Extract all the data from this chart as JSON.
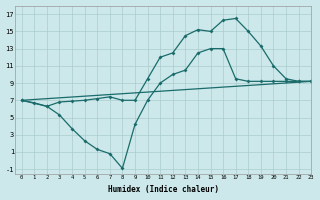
{
  "xlabel": "Humidex (Indice chaleur)",
  "background_color": "#cce8ea",
  "grid_color": "#aacccc",
  "line_color": "#1a6b6b",
  "line1_x": [
    0,
    1,
    2,
    3,
    4,
    5,
    6,
    7,
    8,
    9,
    10,
    11,
    12,
    13,
    14,
    15,
    16,
    17,
    18,
    19,
    20,
    21,
    22,
    23
  ],
  "line1_y": [
    7.0,
    6.7,
    6.3,
    6.8,
    6.9,
    7.0,
    7.2,
    7.4,
    7.0,
    7.0,
    9.5,
    12.0,
    12.5,
    14.5,
    15.2,
    15.0,
    16.3,
    16.5,
    15.0,
    13.3,
    11.0,
    9.5,
    9.2,
    9.2
  ],
  "line2_x": [
    0,
    2,
    3,
    4,
    5,
    6,
    7,
    8,
    9,
    10,
    11,
    12,
    13,
    14,
    15,
    16,
    17,
    18,
    19,
    20,
    21,
    22,
    23
  ],
  "line2_y": [
    7.0,
    6.3,
    5.3,
    3.7,
    2.3,
    1.3,
    0.8,
    -0.9,
    4.2,
    7.0,
    9.0,
    10.0,
    10.5,
    12.5,
    13.0,
    13.0,
    9.5,
    9.2,
    9.2,
    9.2,
    9.2,
    9.2,
    9.2
  ],
  "line3_x": [
    0,
    23
  ],
  "line3_y": [
    7.0,
    9.2
  ],
  "xlim": [
    -0.5,
    23
  ],
  "ylim": [
    -1.5,
    18
  ],
  "yticks": [
    -1,
    1,
    3,
    5,
    7,
    9,
    11,
    13,
    15,
    17
  ],
  "xticks": [
    0,
    1,
    2,
    3,
    4,
    5,
    6,
    7,
    8,
    9,
    10,
    11,
    12,
    13,
    14,
    15,
    16,
    17,
    18,
    19,
    20,
    21,
    22,
    23
  ]
}
